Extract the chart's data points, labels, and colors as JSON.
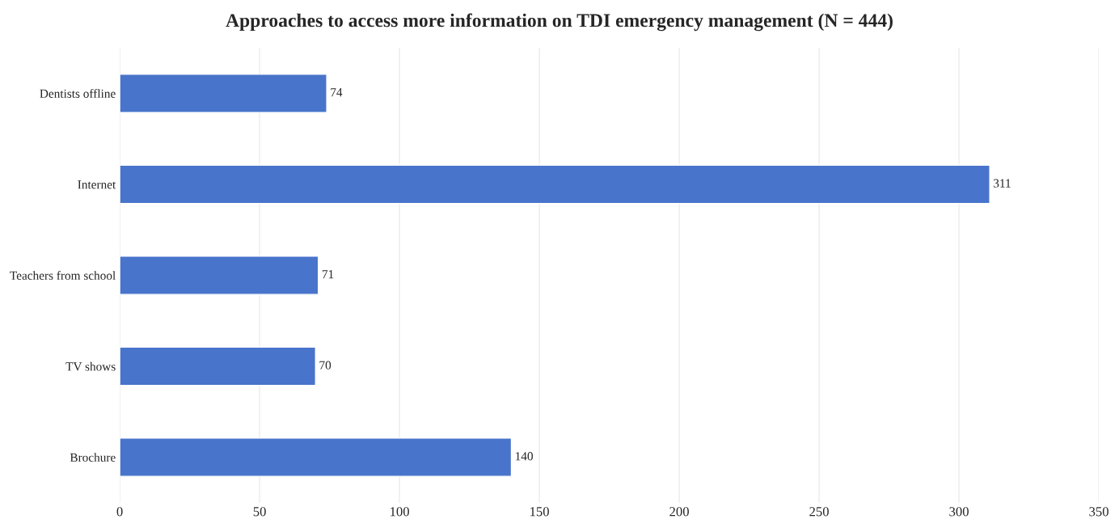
{
  "chart_data": {
    "type": "bar",
    "orientation": "horizontal",
    "title": "Approaches to access more information on TDI emergency management (N = 444)",
    "categories": [
      "Dentists offline",
      "Internet",
      "Teachers from school",
      "TV shows",
      "Brochure"
    ],
    "values": [
      74,
      311,
      71,
      70,
      140
    ],
    "color": "#4874cb",
    "xlim": [
      0,
      350
    ],
    "xticks": [
      0,
      50,
      100,
      150,
      200,
      250,
      300,
      350
    ],
    "grid": "x",
    "data_labels": true
  }
}
